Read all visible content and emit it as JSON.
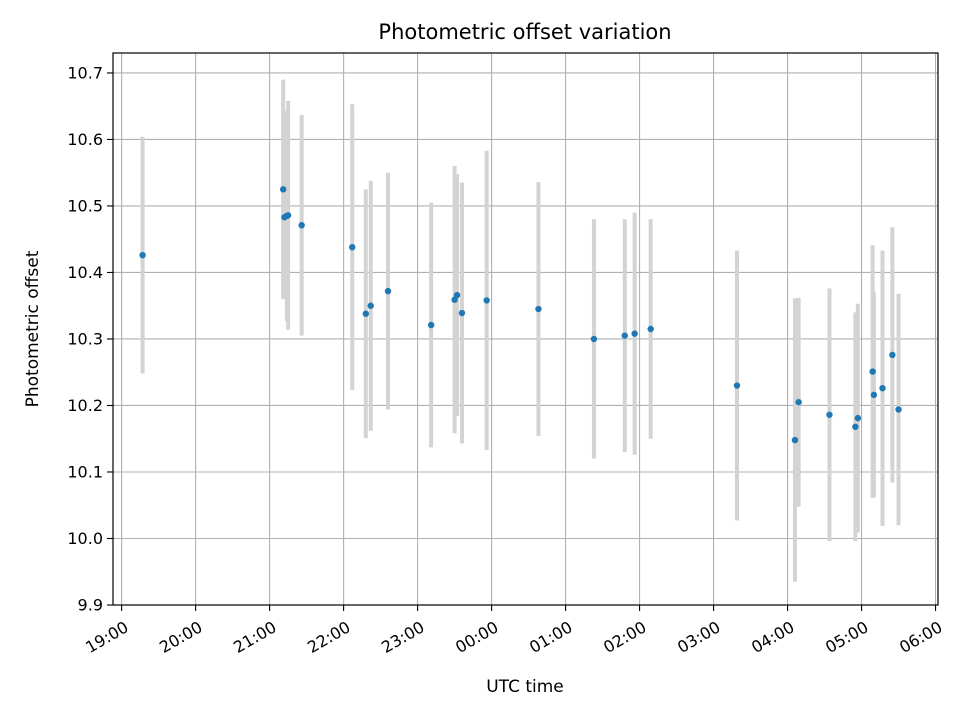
{
  "chart_data": {
    "type": "scatter",
    "title": "Photometric offset variation",
    "xlabel": "UTC time",
    "ylabel": "Photometric offset",
    "x_axis_type": "time",
    "x_range": [
      "18:53",
      "06:02"
    ],
    "ylim": [
      9.9,
      10.73
    ],
    "grid": true,
    "x_ticks": [
      "19:00",
      "20:00",
      "21:00",
      "22:00",
      "23:00",
      "00:00",
      "01:00",
      "02:00",
      "03:00",
      "04:00",
      "05:00",
      "06:00"
    ],
    "y_ticks": [
      "9.9",
      "10.0",
      "10.1",
      "10.2",
      "10.3",
      "10.4",
      "10.5",
      "10.6",
      "10.7"
    ],
    "colors": {
      "point": "#1f77b4",
      "errorbar": "#d3d3d3",
      "grid": "#b0b0b0"
    },
    "series": [
      {
        "points": [
          {
            "time": "19:17",
            "y": 10.426,
            "err": 0.178
          },
          {
            "time": "21:11",
            "y": 10.525,
            "err": 0.165
          },
          {
            "time": "21:12",
            "y": 10.483,
            "err": 0.123
          },
          {
            "time": "21:14",
            "y": 10.485,
            "err": 0.158
          },
          {
            "time": "21:15",
            "y": 10.486,
            "err": 0.172
          },
          {
            "time": "21:26",
            "y": 10.471,
            "err": 0.166
          },
          {
            "time": "22:07",
            "y": 10.438,
            "err": 0.215
          },
          {
            "time": "22:18",
            "y": 10.338,
            "err": 0.187
          },
          {
            "time": "22:22",
            "y": 10.35,
            "err": 0.188
          },
          {
            "time": "22:36",
            "y": 10.372,
            "err": 0.178
          },
          {
            "time": "23:11",
            "y": 10.321,
            "err": 0.184
          },
          {
            "time": "23:30",
            "y": 10.359,
            "err": 0.201
          },
          {
            "time": "23:32",
            "y": 10.366,
            "err": 0.182
          },
          {
            "time": "23:36",
            "y": 10.339,
            "err": 0.196
          },
          {
            "time": "23:56",
            "y": 10.358,
            "err": 0.225
          },
          {
            "time": "00:38",
            "y": 10.345,
            "err": 0.191
          },
          {
            "time": "01:23",
            "y": 10.3,
            "err": 0.18
          },
          {
            "time": "01:48",
            "y": 10.305,
            "err": 0.175
          },
          {
            "time": "01:56",
            "y": 10.308,
            "err": 0.182
          },
          {
            "time": "02:09",
            "y": 10.315,
            "err": 0.165
          },
          {
            "time": "03:19",
            "y": 10.23,
            "err": 0.203
          },
          {
            "time": "04:06",
            "y": 10.148,
            "err": 0.213
          },
          {
            "time": "04:09",
            "y": 10.205,
            "err": 0.157
          },
          {
            "time": "04:34",
            "y": 10.186,
            "err": 0.19
          },
          {
            "time": "04:55",
            "y": 10.168,
            "err": 0.172
          },
          {
            "time": "04:57",
            "y": 10.181,
            "err": 0.172
          },
          {
            "time": "05:09",
            "y": 10.251,
            "err": 0.19
          },
          {
            "time": "05:10",
            "y": 10.216,
            "err": 0.154
          },
          {
            "time": "05:17",
            "y": 10.226,
            "err": 0.207
          },
          {
            "time": "05:25",
            "y": 10.276,
            "err": 0.192
          },
          {
            "time": "05:30",
            "y": 10.194,
            "err": 0.174
          }
        ]
      }
    ]
  }
}
